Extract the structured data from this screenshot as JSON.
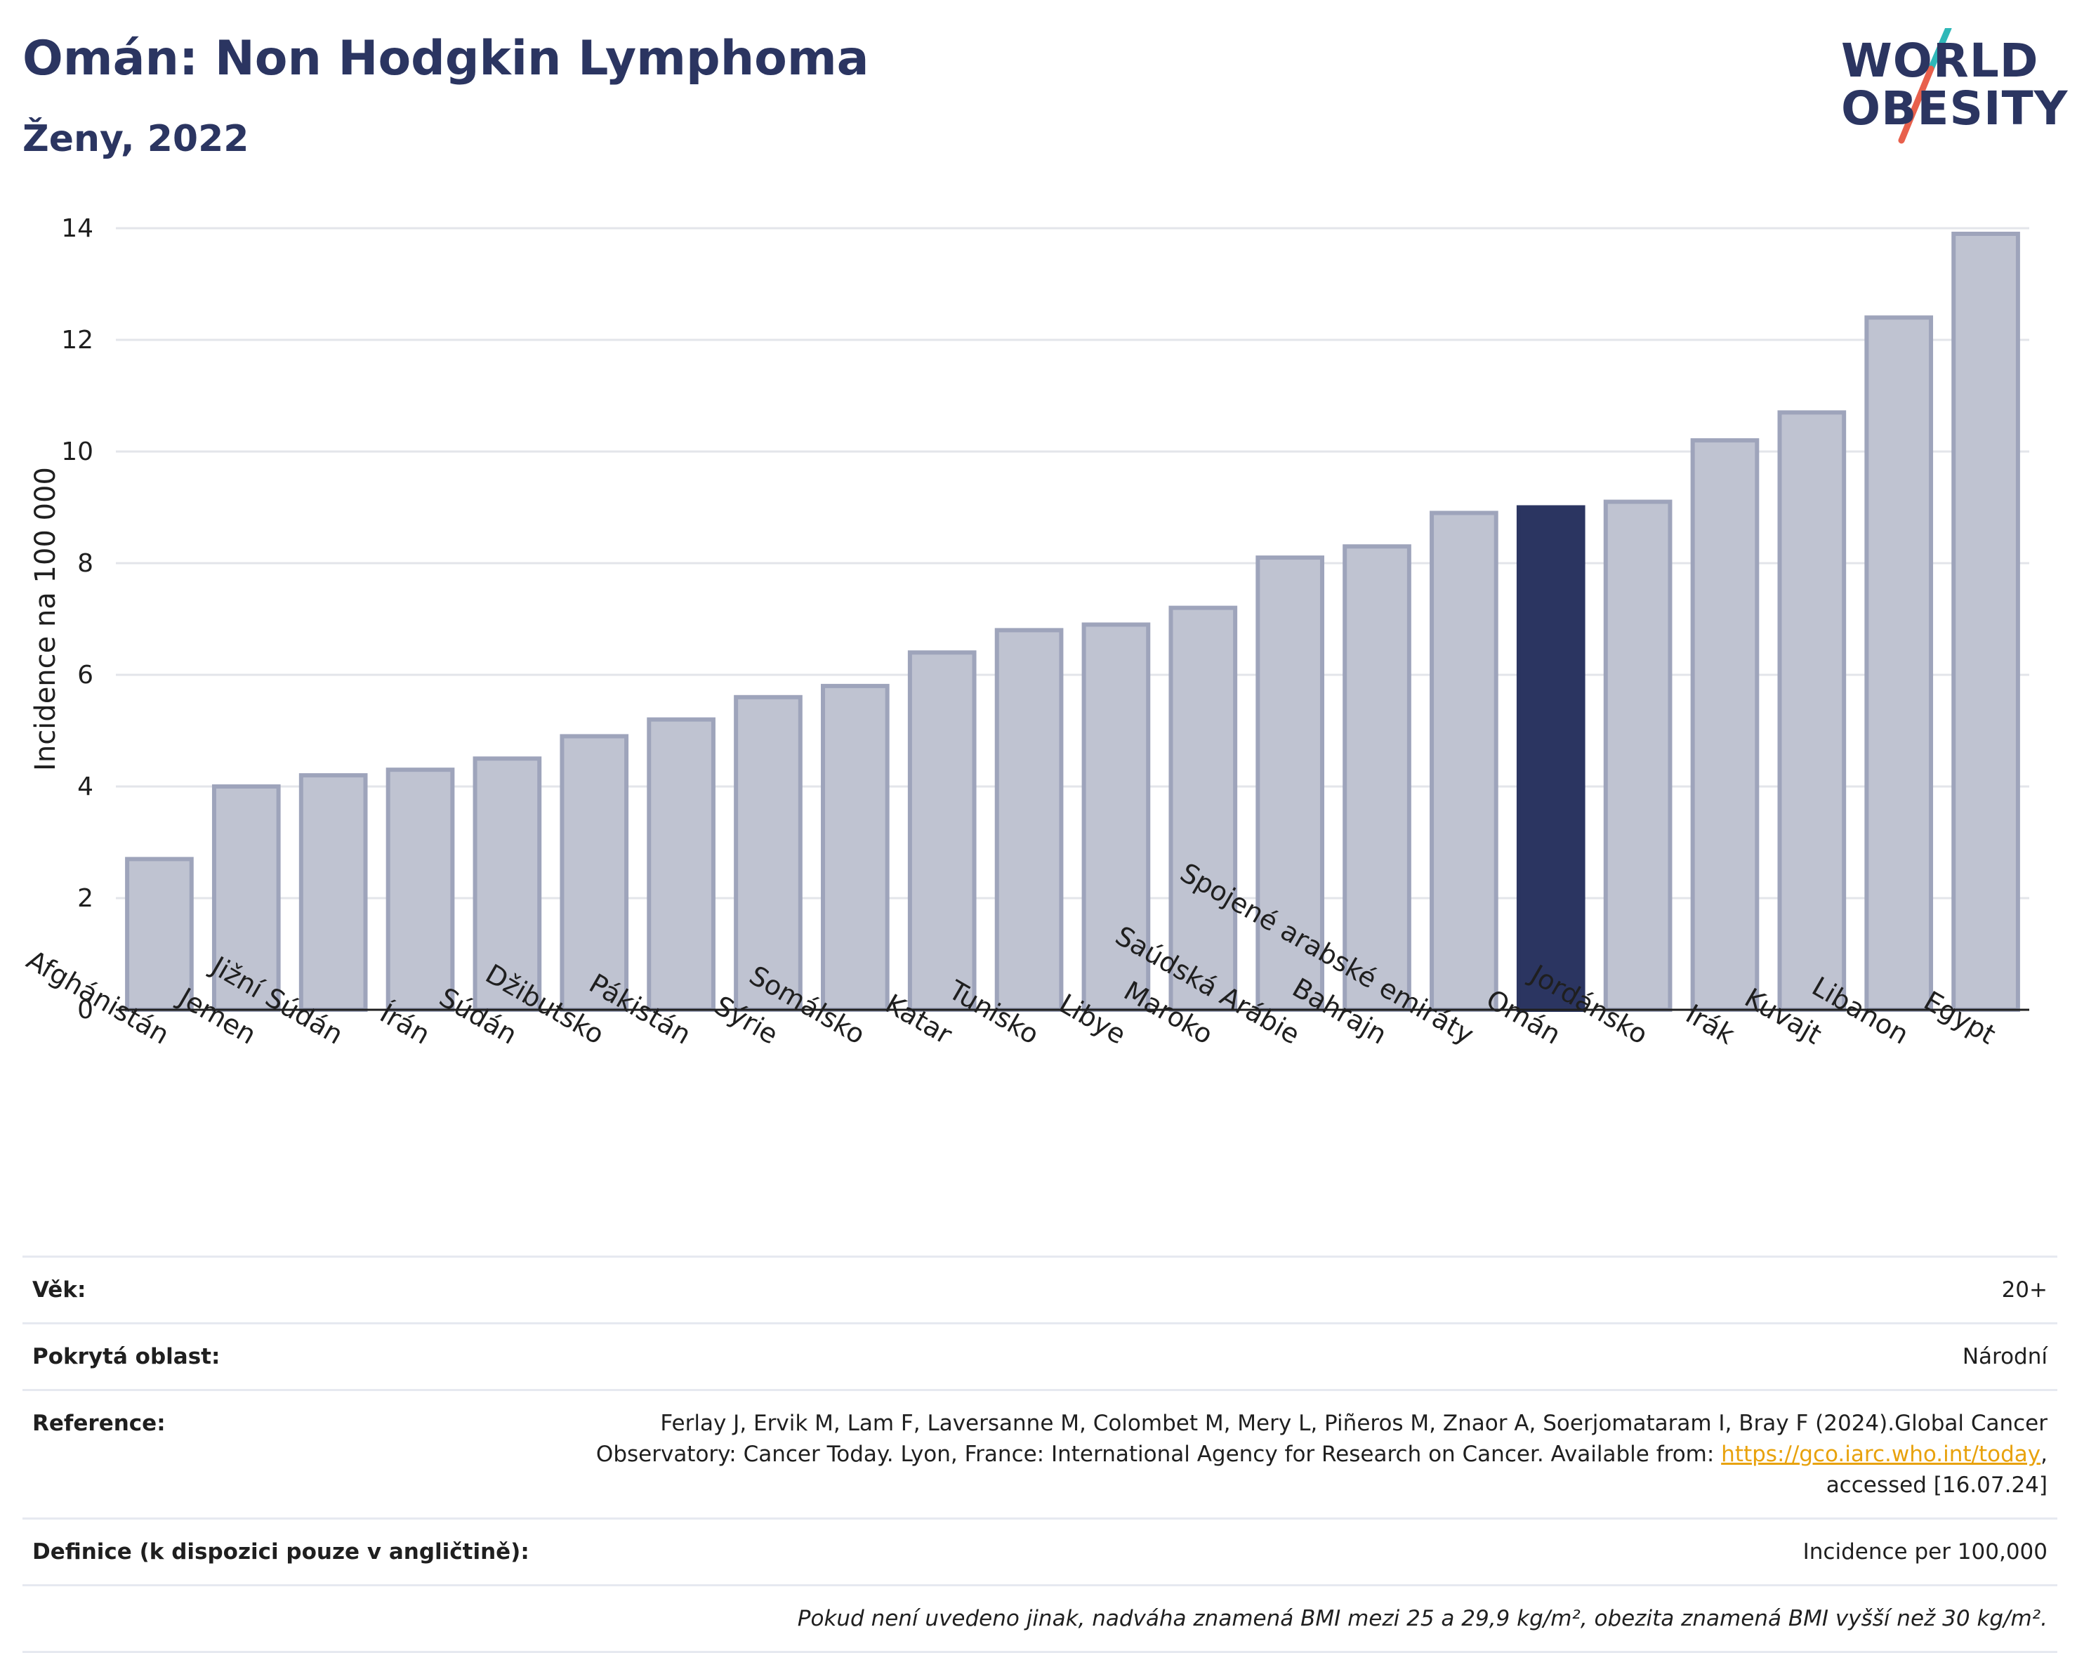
{
  "header": {
    "title": "Omán: Non Hodgkin Lymphoma",
    "subtitle": "Ženy, 2022"
  },
  "logo": {
    "line1": "WORLD",
    "line2": "OBESITY",
    "slash_color_top": "#2fb8b8",
    "slash_color_bottom": "#e8604c"
  },
  "colors": {
    "bar": "#bfc3d1",
    "bar_stroke": "#9ea4bb",
    "highlight": "#2b3561",
    "axis": "#1f1f1f",
    "grid": "#e3e5ea"
  },
  "chart_data": {
    "type": "bar",
    "ylabel": "Incidence na 100 000",
    "xlabel": "",
    "ylim": [
      0,
      14
    ],
    "yticks": [
      0,
      2,
      4,
      6,
      8,
      10,
      12,
      14
    ],
    "grid": true,
    "highlight": "Omán",
    "categories": [
      "Afghánistán",
      "Jemen",
      "Jižní Súdán",
      "Írán",
      "Súdán",
      "Džibutsko",
      "Pákistán",
      "Sýrie",
      "Somálsko",
      "Katar",
      "Tunisko",
      "Libye",
      "Maroko",
      "Saúdská Arábie",
      "Bahrajn",
      "Spojené arabské emiráty",
      "Omán",
      "Jordánsko",
      "Irák",
      "Kuvajt",
      "Libanon",
      "Egypt"
    ],
    "values": [
      2.7,
      4.0,
      4.2,
      4.3,
      4.5,
      4.9,
      5.2,
      5.6,
      5.8,
      6.4,
      6.8,
      6.9,
      7.2,
      8.1,
      8.3,
      8.9,
      9.0,
      9.1,
      10.2,
      10.7,
      12.4,
      13.9
    ]
  },
  "meta": {
    "age_label": "Věk:",
    "age_value": "20+",
    "coverage_label": "Pokrytá oblast:",
    "coverage_value": "Národní",
    "reference_label": "Reference:",
    "reference_text": "Ferlay J, Ervik M, Lam F, Laversanne M, Colombet M, Mery L, Piñeros M, Znaor A, Soerjomataram I, Bray F (2024).Global Cancer Observatory: Cancer Today. Lyon, France: International Agency for Research on Cancer. Available from:",
    "reference_link": "https://gco.iarc.who.int/today",
    "reference_suffix": ", accessed [16.07.24]",
    "definition_label": "Definice (k dispozici pouze v angličtině):",
    "definition_value": "Incidence per 100,000",
    "note": "Pokud není uvedeno jinak, nadváha znamená BMI mezi 25 a 29,9 kg/m², obezita znamená BMI vyšší než 30 kg/m²."
  }
}
